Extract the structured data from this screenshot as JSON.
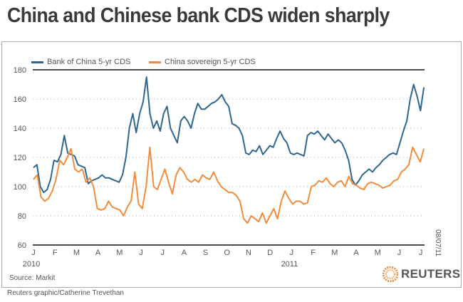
{
  "title": "China and Chinese bank CDS widen sharply",
  "source": "Source: Markit",
  "credit": "Reuters graphic/Catherine Trevethan",
  "date_stamp": "08/07/11",
  "logo_text": "REUTERS",
  "colors": {
    "blue": "#2f6690",
    "orange": "#f28c3c"
  },
  "chart_data": {
    "type": "line",
    "title": "China and Chinese bank CDS widen sharply",
    "xlabel": "",
    "ylabel": "",
    "ylim": [
      60,
      180
    ],
    "yticks": [
      60,
      80,
      100,
      120,
      140,
      160,
      180
    ],
    "xlim_months": [
      0,
      18.3
    ],
    "month_ticks": [
      "J",
      "F",
      "M",
      "A",
      "M",
      "J",
      "J",
      "A",
      "S",
      "O",
      "N",
      "D",
      "J",
      "F",
      "M",
      "A",
      "M",
      "J",
      "J"
    ],
    "year_labels": [
      {
        "label": "2010",
        "month": 0
      },
      {
        "label": "2011",
        "month": 12
      }
    ],
    "legend_position": "top-left",
    "grid": "dotted horizontal",
    "series": [
      {
        "name": "Bank of China 5-yr CDS",
        "color": "#2f6690",
        "x_start_month": 0,
        "x_end_month": 18.15,
        "values": [
          113,
          115,
          100,
          96,
          98,
          105,
          118,
          117,
          122,
          135,
          123,
          122,
          121,
          115,
          114,
          113,
          102,
          104,
          105,
          106,
          108,
          106,
          106,
          105,
          104,
          103,
          108,
          120,
          140,
          150,
          137,
          150,
          158,
          175,
          150,
          140,
          145,
          138,
          150,
          155,
          140,
          135,
          130,
          145,
          148,
          145,
          140,
          150,
          157,
          153,
          153,
          155,
          157,
          158,
          160,
          163,
          158,
          155,
          143,
          142,
          140,
          135,
          123,
          122,
          125,
          124,
          128,
          122,
          125,
          128,
          127,
          133,
          138,
          133,
          130,
          123,
          122,
          123,
          122,
          121,
          135,
          137,
          136,
          138,
          135,
          132,
          136,
          133,
          130,
          132,
          130,
          125,
          118,
          105,
          101,
          104,
          108,
          110,
          112,
          110,
          113,
          115,
          118,
          120,
          122,
          123,
          122,
          130,
          138,
          145,
          160,
          170,
          162,
          152,
          168
        ]
      },
      {
        "name": "China sovereign 5-yr CDS",
        "color": "#f28c3c",
        "x_start_month": 0,
        "x_end_month": 18.15,
        "values": [
          105,
          108,
          93,
          90,
          92,
          97,
          105,
          118,
          115,
          120,
          126,
          112,
          110,
          112,
          103,
          106,
          100,
          85,
          84,
          85,
          90,
          86,
          85,
          84,
          80,
          86,
          90,
          110,
          88,
          85,
          100,
          127,
          100,
          98,
          105,
          112,
          103,
          95,
          108,
          113,
          110,
          105,
          103,
          105,
          103,
          108,
          106,
          105,
          110,
          104,
          100,
          98,
          96,
          96,
          94,
          90,
          78,
          75,
          80,
          78,
          76,
          82,
          75,
          80,
          85,
          78,
          90,
          97,
          92,
          88,
          90,
          90,
          88,
          89,
          100,
          101,
          104,
          103,
          106,
          102,
          100,
          103,
          104,
          100,
          107,
          102,
          101,
          99,
          98,
          102,
          103,
          102,
          101,
          99,
          100,
          101,
          104,
          105,
          110,
          112,
          115,
          127,
          122,
          117,
          126
        ]
      }
    ]
  }
}
